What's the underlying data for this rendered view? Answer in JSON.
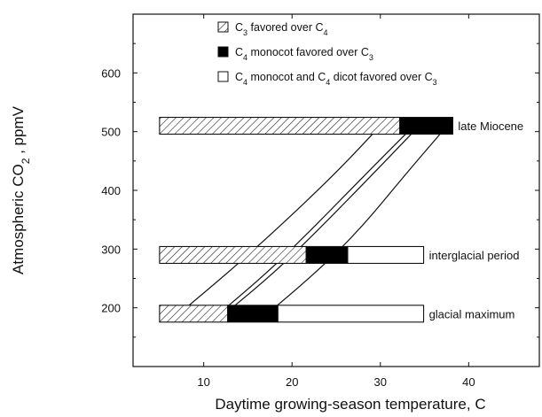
{
  "chart_data": {
    "type": "bar",
    "orientation": "horizontal-range",
    "xlabel": "Daytime growing-season temperature, C",
    "ylabel_main": "Atmospheric CO",
    "ylabel_sub": "2",
    "ylabel_tail": " , ppmV",
    "xlim": [
      2,
      48
    ],
    "ylim": [
      100,
      700
    ],
    "xticks": [
      10,
      20,
      30,
      40
    ],
    "yticks": [
      200,
      300,
      400,
      500,
      600
    ],
    "legend": {
      "placement": "top",
      "entries": [
        {
          "kind": "hatched",
          "parts": [
            "C",
            "3",
            " favored over C",
            "4",
            ""
          ]
        },
        {
          "kind": "black",
          "parts": [
            "C",
            "4",
            " monocot favored over C",
            "3",
            ""
          ]
        },
        {
          "kind": "white",
          "parts": [
            "C",
            "4",
            " monocot and C",
            "4",
            " dicot favored over C",
            "3"
          ]
        }
      ]
    },
    "rows": [
      {
        "label": "late Miocene",
        "co2": 510,
        "segments": [
          {
            "kind": "hatched",
            "x0": 5,
            "x1": 32.2
          },
          {
            "kind": "black",
            "x0": 32.2,
            "x1": 38.2
          }
        ]
      },
      {
        "label": "interglacial period",
        "co2": 290,
        "segments": [
          {
            "kind": "hatched",
            "x0": 5,
            "x1": 21.6
          },
          {
            "kind": "black",
            "x0": 21.6,
            "x1": 26.3
          },
          {
            "kind": "white",
            "x0": 26.3,
            "x1": 34.9
          }
        ]
      },
      {
        "label": "glacial maximum",
        "co2": 190,
        "segments": [
          {
            "kind": "hatched",
            "x0": 5,
            "x1": 12.7
          },
          {
            "kind": "black",
            "x0": 12.7,
            "x1": 18.4
          },
          {
            "kind": "white",
            "x0": 18.4,
            "x1": 34.9
          }
        ]
      }
    ],
    "curves": [
      {
        "name": "curve-1",
        "points": [
          [
            8.0,
            200
          ],
          [
            12.0,
            250
          ],
          [
            18.0,
            330
          ],
          [
            25.0,
            430
          ],
          [
            30.0,
            510
          ]
        ]
      },
      {
        "name": "curve-2",
        "points": [
          [
            12.5,
            200
          ],
          [
            16.5,
            250
          ],
          [
            22.0,
            330
          ],
          [
            28.5,
            430
          ],
          [
            33.8,
            510
          ]
        ]
      },
      {
        "name": "curve-3",
        "points": [
          [
            13.2,
            200
          ],
          [
            17.3,
            250
          ],
          [
            22.8,
            330
          ],
          [
            29.3,
            430
          ],
          [
            34.4,
            510
          ]
        ]
      },
      {
        "name": "curve-4",
        "points": [
          [
            18.0,
            200
          ],
          [
            22.0,
            250
          ],
          [
            27.5,
            330
          ],
          [
            33.0,
            430
          ],
          [
            37.0,
            500
          ]
        ]
      }
    ]
  }
}
